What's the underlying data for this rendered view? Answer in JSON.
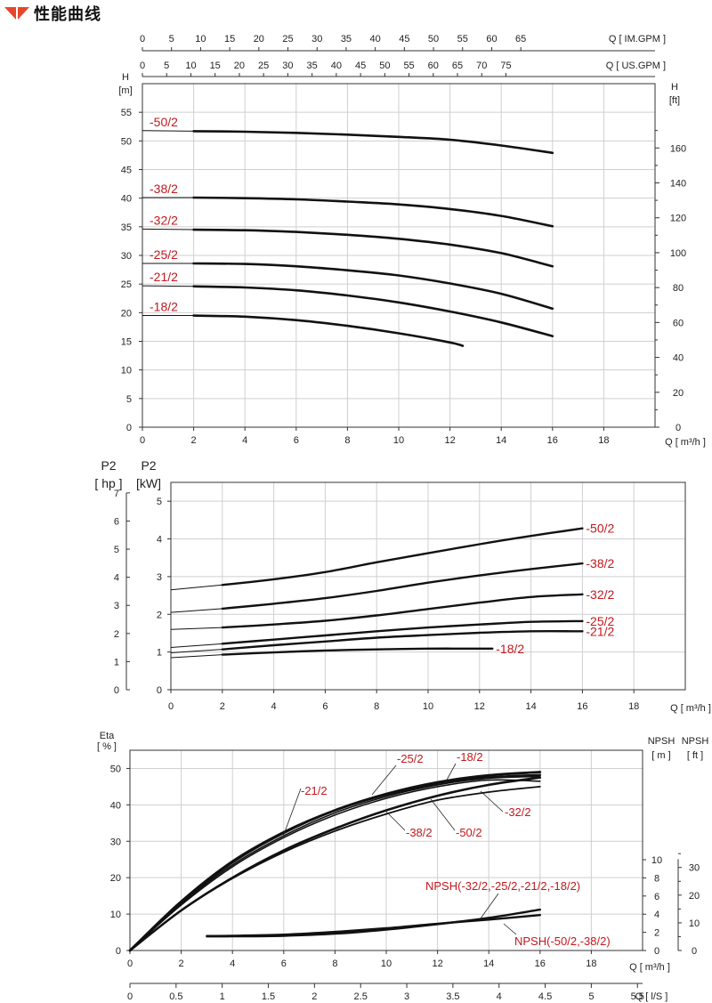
{
  "page_title": "性能曲线",
  "logo_color": "#e8462a",
  "label_color": "#c0191e",
  "chart_data": [
    {
      "type": "line",
      "id": "head",
      "xlabel": "Q [ m³/h ]",
      "xlim": [
        0,
        20
      ],
      "x_ticks": [
        "0",
        "2",
        "4",
        "6",
        "8",
        "10",
        "12",
        "14",
        "16",
        "18"
      ],
      "top_axis_1": {
        "label": "Q [ IM.GPM ]",
        "ticks": [
          "0",
          "5",
          "10",
          "15",
          "20",
          "25",
          "30",
          "35",
          "40",
          "45",
          "50",
          "55",
          "60",
          "65"
        ]
      },
      "top_axis_2": {
        "label": "Q [ US.GPM ]",
        "ticks": [
          "0",
          "5",
          "10",
          "15",
          "20",
          "25",
          "30",
          "35",
          "40",
          "45",
          "50",
          "55",
          "60",
          "65",
          "70",
          "75"
        ]
      },
      "ylabel_left": [
        "H",
        "[m]"
      ],
      "ylim": [
        0,
        60
      ],
      "y_ticks": [
        "0",
        "5",
        "10",
        "15",
        "20",
        "25",
        "30",
        "35",
        "40",
        "45",
        "50",
        "55"
      ],
      "ylabel_right": [
        "H",
        "[ft]"
      ],
      "y2_ticks": [
        "0",
        "20",
        "40",
        "60",
        "80",
        "100",
        "120",
        "140",
        "160"
      ],
      "grid": true,
      "series": [
        {
          "name": "-50/2",
          "x": [
            0,
            2,
            4,
            6,
            8,
            10,
            12,
            14,
            16
          ],
          "y": [
            51.8,
            51.7,
            51.6,
            51.4,
            51.1,
            50.7,
            50.2,
            49.2,
            47.9
          ]
        },
        {
          "name": "-38/2",
          "x": [
            0,
            2,
            4,
            6,
            8,
            10,
            12,
            14,
            16
          ],
          "y": [
            40.1,
            40.1,
            40.0,
            39.8,
            39.4,
            38.9,
            38.1,
            36.9,
            35.1
          ]
        },
        {
          "name": "-32/2",
          "x": [
            0,
            2,
            4,
            6,
            8,
            10,
            12,
            14,
            16
          ],
          "y": [
            34.6,
            34.5,
            34.4,
            34.1,
            33.6,
            32.9,
            31.9,
            30.4,
            28.1
          ]
        },
        {
          "name": "-25/2",
          "x": [
            0,
            2,
            4,
            6,
            8,
            10,
            12,
            14,
            16
          ],
          "y": [
            28.6,
            28.6,
            28.5,
            28.1,
            27.4,
            26.5,
            25.1,
            23.3,
            20.7
          ]
        },
        {
          "name": "-21/2",
          "x": [
            0,
            2,
            4,
            6,
            8,
            10,
            12,
            14,
            16
          ],
          "y": [
            24.7,
            24.6,
            24.4,
            23.9,
            23.0,
            21.8,
            20.2,
            18.3,
            15.9
          ]
        },
        {
          "name": "-18/2",
          "x": [
            0,
            2,
            4,
            6,
            8,
            10,
            12,
            12.5
          ],
          "y": [
            19.5,
            19.5,
            19.3,
            18.7,
            17.7,
            16.4,
            14.8,
            14.2
          ]
        }
      ]
    },
    {
      "type": "line",
      "id": "power",
      "xlabel": "Q [ m³/h ]",
      "xlim": [
        0,
        20
      ],
      "x_ticks": [
        "0",
        "2",
        "4",
        "6",
        "8",
        "10",
        "12",
        "14",
        "16",
        "18"
      ],
      "ylabel_left": [
        "P2",
        "[ hp ]"
      ],
      "y_hp_ticks": [
        "0",
        "1",
        "2",
        "3",
        "4",
        "5",
        "6",
        "7"
      ],
      "ylabel_inner": [
        "P2",
        "[kW]"
      ],
      "ylim": [
        0,
        5.5
      ],
      "y_ticks": [
        "0",
        "1",
        "2",
        "3",
        "4",
        "5"
      ],
      "grid": true,
      "series": [
        {
          "name": "-50/2",
          "x": [
            0,
            2,
            4,
            6,
            8,
            10,
            12,
            14,
            16
          ],
          "y": [
            2.65,
            2.78,
            2.93,
            3.12,
            3.38,
            3.62,
            3.86,
            4.08,
            4.28
          ]
        },
        {
          "name": "-38/2",
          "x": [
            0,
            2,
            4,
            6,
            8,
            10,
            12,
            14,
            16
          ],
          "y": [
            2.05,
            2.15,
            2.28,
            2.43,
            2.62,
            2.84,
            3.03,
            3.2,
            3.35
          ]
        },
        {
          "name": "-32/2",
          "x": [
            0,
            2,
            4,
            6,
            8,
            10,
            12,
            14,
            16
          ],
          "y": [
            1.6,
            1.65,
            1.73,
            1.83,
            1.97,
            2.14,
            2.31,
            2.46,
            2.53
          ]
        },
        {
          "name": "-25/2",
          "x": [
            0,
            2,
            4,
            6,
            8,
            10,
            12,
            14,
            16
          ],
          "y": [
            1.12,
            1.22,
            1.33,
            1.44,
            1.55,
            1.65,
            1.73,
            1.8,
            1.82
          ]
        },
        {
          "name": "-21/2",
          "x": [
            0,
            2,
            4,
            6,
            8,
            10,
            12,
            14,
            16
          ],
          "y": [
            0.98,
            1.07,
            1.18,
            1.28,
            1.38,
            1.45,
            1.51,
            1.55,
            1.55
          ]
        },
        {
          "name": "-18/2",
          "x": [
            0,
            2,
            4,
            6,
            8,
            10,
            12,
            12.5
          ],
          "y": [
            0.85,
            0.93,
            0.99,
            1.04,
            1.07,
            1.09,
            1.09,
            1.09
          ]
        }
      ]
    },
    {
      "type": "line",
      "id": "efficiency-npsh",
      "xlabel": "Q [ m³/h ]",
      "xlim": [
        0,
        20
      ],
      "x_ticks": [
        "0",
        "2",
        "4",
        "6",
        "8",
        "10",
        "12",
        "14",
        "16",
        "18"
      ],
      "bottom_axis_2": {
        "label": "Q [ l/S ]",
        "ticks": [
          "0",
          "0.5",
          "1",
          "1.5",
          "2",
          "2.5",
          "3",
          "3.5",
          "4",
          "4.5",
          "5",
          "5.5"
        ]
      },
      "ylabel_left": [
        "Eta",
        "[ % ]"
      ],
      "ylim": [
        0,
        55
      ],
      "y_ticks": [
        "0",
        "10",
        "20",
        "30",
        "40",
        "50"
      ],
      "npsh_m_label": [
        "NPSH",
        "[ m ]"
      ],
      "npsh_m_ticks": [
        "0",
        "2",
        "4",
        "6",
        "8",
        "10"
      ],
      "npsh_ft_label": [
        "NPSH",
        "[ ft ]"
      ],
      "npsh_ft_ticks": [
        "0",
        "10",
        "20",
        "30"
      ],
      "grid": true,
      "series": [
        {
          "name": "-21/2",
          "x": [
            0,
            2,
            4,
            6,
            8,
            10,
            12,
            14,
            16
          ],
          "y": [
            0,
            13.5,
            24.5,
            32.5,
            38.5,
            42.8,
            45.8,
            47.5,
            48.2
          ]
        },
        {
          "name": "-25/2",
          "x": [
            0,
            2,
            4,
            6,
            8,
            10,
            12,
            14,
            16
          ],
          "y": [
            0,
            13.2,
            24.2,
            32.3,
            38.5,
            43.0,
            46.2,
            48.1,
            49.0
          ]
        },
        {
          "name": "-18/2",
          "x": [
            0,
            2,
            4,
            6,
            8,
            10,
            12,
            14,
            16
          ],
          "y": [
            0,
            12.8,
            23.5,
            31.5,
            37.8,
            42.3,
            45.5,
            47.3,
            47.8
          ]
        },
        {
          "name": "-32/2",
          "x": [
            0,
            2,
            4,
            6,
            8,
            10,
            12,
            14,
            16
          ],
          "y": [
            0,
            12.5,
            23.0,
            31.0,
            37.2,
            41.8,
            45.0,
            46.8,
            46.5
          ]
        },
        {
          "name": "-38/2",
          "x": [
            0,
            2,
            4,
            6,
            8,
            10,
            12,
            14,
            16
          ],
          "y": [
            0,
            11.0,
            20.0,
            27.5,
            33.5,
            38.5,
            42.5,
            45.5,
            47.5
          ]
        },
        {
          "name": "-50/2",
          "x": [
            0,
            2,
            4,
            6,
            8,
            10,
            12,
            14,
            16
          ],
          "y": [
            0,
            11.0,
            19.8,
            27.0,
            32.8,
            37.5,
            41.3,
            43.5,
            45.0
          ]
        },
        {
          "name": "NPSH(-32/2,-25/2,-21/2,-18/2)",
          "axis": "npsh_m",
          "x": [
            3,
            4,
            6,
            8,
            10,
            12,
            14,
            16
          ],
          "y": [
            1.55,
            1.56,
            1.62,
            1.85,
            2.3,
            2.9,
            3.6,
            4.5
          ]
        },
        {
          "name": "NPSH(-50/2,-38/2)",
          "axis": "npsh_m",
          "x": [
            3,
            4,
            6,
            8,
            10,
            12,
            14,
            16
          ],
          "y": [
            1.6,
            1.62,
            1.75,
            2.05,
            2.45,
            2.95,
            3.4,
            3.9
          ]
        }
      ]
    }
  ]
}
